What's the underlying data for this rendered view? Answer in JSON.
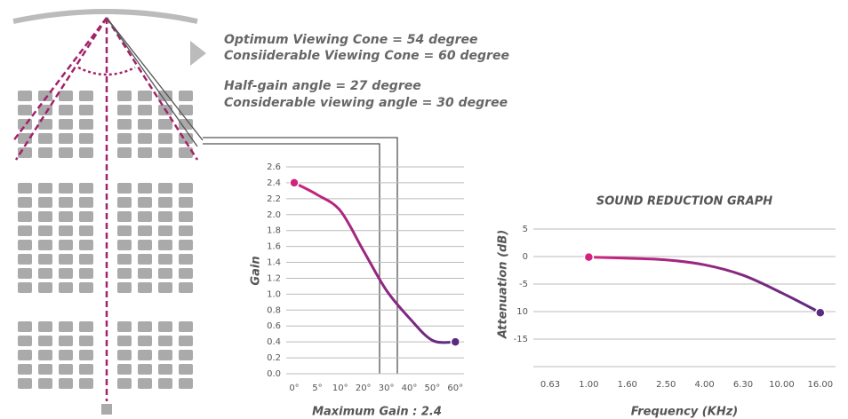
{
  "diagram": {
    "lines": [
      "Optimum Viewing Cone = 54 degree",
      "Consiiderable Viewing Cone = 60 degree",
      "Half-gain angle = 27 degree",
      "Considerable viewing angle = 30 degree"
    ]
  },
  "chart_data": [
    {
      "type": "line",
      "ylabel": "Gain",
      "xlabel": "Maximum Gain : 2.4",
      "categories": [
        "0°",
        "5°",
        "10°",
        "20°",
        "30°",
        "40°",
        "50°",
        "60°"
      ],
      "series": [
        {
          "color": "#c8237f",
          "values": [
            2.4,
            2.25,
            2.05,
            1.55,
            1.05,
            0.7,
            0.42,
            0.4
          ]
        }
      ],
      "ylim": [
        0,
        2.6
      ],
      "yticks": [
        {
          "value": 0,
          "label": "0.0"
        },
        0.2,
        0.4,
        0.6,
        0.8,
        {
          "value": 1,
          "label": "1.0"
        },
        1.2,
        1.4,
        1.6,
        1.8,
        {
          "value": 2,
          "label": "2.0"
        },
        2.2,
        2.4,
        2.6
      ],
      "grid": true
    },
    {
      "type": "line",
      "title": "SOUND REDUCTION GRAPH",
      "ylabel": "Attenuation (dB)",
      "xlabel": "Frequency (KHz)",
      "categories": [
        "0.63",
        "1.00",
        "1.60",
        "2.50",
        "4.00",
        "6.30",
        "10.00",
        "16.00"
      ],
      "series": [
        {
          "color": "#c8237f",
          "values": [
            null,
            -0.1,
            -0.3,
            -0.6,
            -1.5,
            -3.4,
            -6.6,
            -10.2
          ]
        }
      ],
      "ylim": [
        -20,
        5
      ],
      "yticks": [
        5,
        0,
        -5,
        {
          "value": -10,
          "label": "10"
        },
        -15
      ],
      "grid": true
    }
  ]
}
